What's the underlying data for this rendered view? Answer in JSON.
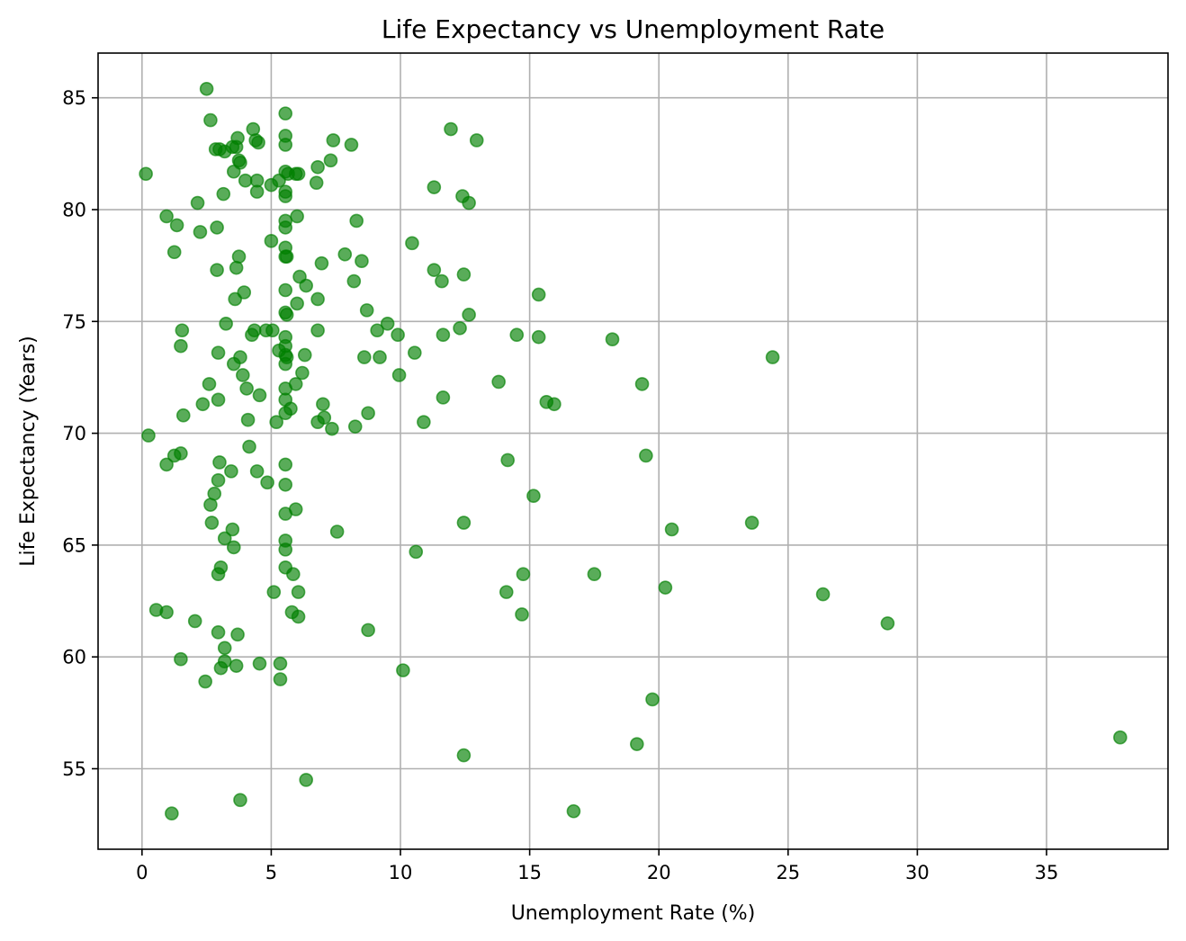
{
  "chart_data": {
    "type": "scatter",
    "title": "Life Expectancy vs Unemployment Rate",
    "xlabel": "Unemployment Rate (%)",
    "ylabel": "Life Expectancy (Years)",
    "xlim": [
      -1.7,
      39.7
    ],
    "ylim": [
      51.4,
      87.0
    ],
    "xticks": [
      0,
      5,
      10,
      15,
      20,
      25,
      30,
      35
    ],
    "yticks": [
      55,
      60,
      65,
      70,
      75,
      80,
      85
    ],
    "xtick_labels": [
      "0",
      "5",
      "10",
      "15",
      "20",
      "25",
      "30",
      "35"
    ],
    "ytick_labels": [
      "55",
      "60",
      "65",
      "70",
      "75",
      "80",
      "85"
    ],
    "grid": true,
    "legend": "none",
    "marker_color": "#008000",
    "marker_alpha": 0.65,
    "points": [
      [
        2.5,
        85.4
      ],
      [
        2.65,
        84.0
      ],
      [
        4.3,
        83.6
      ],
      [
        5.55,
        84.3
      ],
      [
        11.95,
        83.6
      ],
      [
        12.95,
        83.1
      ],
      [
        3.7,
        83.2
      ],
      [
        3.65,
        82.8
      ],
      [
        4.4,
        83.1
      ],
      [
        4.5,
        83.0
      ],
      [
        5.55,
        83.3
      ],
      [
        7.4,
        83.1
      ],
      [
        8.1,
        82.9
      ],
      [
        2.85,
        82.7
      ],
      [
        3.0,
        82.7
      ],
      [
        3.2,
        82.6
      ],
      [
        3.5,
        82.8
      ],
      [
        5.55,
        82.9
      ],
      [
        7.3,
        82.2
      ],
      [
        3.75,
        82.2
      ],
      [
        3.8,
        82.1
      ],
      [
        6.8,
        81.9
      ],
      [
        0.15,
        81.6
      ],
      [
        3.55,
        81.7
      ],
      [
        5.55,
        81.7
      ],
      [
        5.65,
        81.6
      ],
      [
        5.95,
        81.6
      ],
      [
        6.05,
        81.6
      ],
      [
        4.0,
        81.3
      ],
      [
        4.45,
        81.3
      ],
      [
        5.0,
        81.1
      ],
      [
        5.3,
        81.3
      ],
      [
        6.75,
        81.2
      ],
      [
        11.3,
        81.0
      ],
      [
        4.45,
        80.8
      ],
      [
        3.15,
        80.7
      ],
      [
        5.55,
        80.8
      ],
      [
        5.55,
        80.6
      ],
      [
        12.4,
        80.6
      ],
      [
        12.65,
        80.3
      ],
      [
        2.15,
        80.3
      ],
      [
        0.95,
        79.7
      ],
      [
        6.0,
        79.7
      ],
      [
        5.55,
        79.5
      ],
      [
        8.3,
        79.5
      ],
      [
        1.35,
        79.3
      ],
      [
        2.9,
        79.2
      ],
      [
        5.55,
        79.2
      ],
      [
        2.25,
        79.0
      ],
      [
        5.0,
        78.6
      ],
      [
        10.45,
        78.5
      ],
      [
        5.55,
        78.3
      ],
      [
        1.25,
        78.1
      ],
      [
        7.85,
        78.0
      ],
      [
        5.55,
        77.9
      ],
      [
        5.6,
        77.9
      ],
      [
        3.75,
        77.9
      ],
      [
        8.5,
        77.7
      ],
      [
        6.95,
        77.6
      ],
      [
        3.65,
        77.4
      ],
      [
        11.3,
        77.3
      ],
      [
        2.9,
        77.3
      ],
      [
        12.45,
        77.1
      ],
      [
        6.1,
        77.0
      ],
      [
        8.2,
        76.8
      ],
      [
        11.6,
        76.8
      ],
      [
        6.35,
        76.6
      ],
      [
        5.55,
        76.4
      ],
      [
        3.95,
        76.3
      ],
      [
        15.35,
        76.2
      ],
      [
        3.6,
        76.0
      ],
      [
        6.8,
        76.0
      ],
      [
        6.0,
        75.8
      ],
      [
        8.7,
        75.5
      ],
      [
        5.55,
        75.4
      ],
      [
        5.6,
        75.3
      ],
      [
        12.65,
        75.3
      ],
      [
        9.5,
        74.9
      ],
      [
        3.25,
        74.9
      ],
      [
        12.3,
        74.7
      ],
      [
        1.55,
        74.6
      ],
      [
        4.35,
        74.6
      ],
      [
        4.8,
        74.6
      ],
      [
        5.05,
        74.6
      ],
      [
        6.8,
        74.6
      ],
      [
        9.1,
        74.6
      ],
      [
        5.55,
        74.3
      ],
      [
        4.25,
        74.4
      ],
      [
        9.9,
        74.4
      ],
      [
        11.65,
        74.4
      ],
      [
        14.5,
        74.4
      ],
      [
        15.35,
        74.3
      ],
      [
        18.2,
        74.2
      ],
      [
        5.55,
        73.9
      ],
      [
        1.5,
        73.9
      ],
      [
        5.3,
        73.7
      ],
      [
        5.55,
        73.5
      ],
      [
        5.6,
        73.4
      ],
      [
        2.95,
        73.6
      ],
      [
        6.3,
        73.5
      ],
      [
        8.6,
        73.4
      ],
      [
        9.2,
        73.4
      ],
      [
        10.55,
        73.6
      ],
      [
        24.4,
        73.4
      ],
      [
        3.55,
        73.1
      ],
      [
        3.8,
        73.4
      ],
      [
        5.55,
        73.1
      ],
      [
        6.2,
        72.7
      ],
      [
        3.9,
        72.6
      ],
      [
        9.95,
        72.6
      ],
      [
        2.6,
        72.2
      ],
      [
        4.05,
        72.0
      ],
      [
        5.55,
        72.0
      ],
      [
        5.95,
        72.2
      ],
      [
        13.8,
        72.3
      ],
      [
        19.35,
        72.2
      ],
      [
        4.55,
        71.7
      ],
      [
        5.55,
        71.5
      ],
      [
        11.65,
        71.6
      ],
      [
        2.35,
        71.3
      ],
      [
        2.95,
        71.5
      ],
      [
        5.75,
        71.1
      ],
      [
        7.0,
        71.3
      ],
      [
        15.65,
        71.4
      ],
      [
        15.95,
        71.3
      ],
      [
        1.6,
        70.8
      ],
      [
        4.1,
        70.6
      ],
      [
        5.55,
        70.9
      ],
      [
        7.05,
        70.7
      ],
      [
        8.75,
        70.9
      ],
      [
        5.2,
        70.5
      ],
      [
        6.8,
        70.5
      ],
      [
        7.35,
        70.2
      ],
      [
        8.25,
        70.3
      ],
      [
        10.9,
        70.5
      ],
      [
        0.25,
        69.9
      ],
      [
        4.15,
        69.4
      ],
      [
        1.5,
        69.1
      ],
      [
        1.25,
        69.0
      ],
      [
        19.5,
        69.0
      ],
      [
        0.95,
        68.6
      ],
      [
        3.0,
        68.7
      ],
      [
        5.55,
        68.6
      ],
      [
        14.15,
        68.8
      ],
      [
        3.45,
        68.3
      ],
      [
        4.45,
        68.3
      ],
      [
        2.95,
        67.9
      ],
      [
        4.85,
        67.8
      ],
      [
        5.55,
        67.7
      ],
      [
        2.8,
        67.3
      ],
      [
        15.15,
        67.2
      ],
      [
        2.65,
        66.8
      ],
      [
        5.55,
        66.4
      ],
      [
        5.95,
        66.6
      ],
      [
        2.7,
        66.0
      ],
      [
        12.45,
        66.0
      ],
      [
        23.6,
        66.0
      ],
      [
        3.5,
        65.7
      ],
      [
        7.55,
        65.6
      ],
      [
        20.5,
        65.7
      ],
      [
        3.2,
        65.3
      ],
      [
        5.55,
        65.2
      ],
      [
        3.55,
        64.9
      ],
      [
        5.55,
        64.8
      ],
      [
        10.6,
        64.7
      ],
      [
        3.05,
        64.0
      ],
      [
        5.55,
        64.0
      ],
      [
        2.95,
        63.7
      ],
      [
        5.85,
        63.7
      ],
      [
        14.75,
        63.7
      ],
      [
        17.5,
        63.7
      ],
      [
        5.1,
        62.9
      ],
      [
        6.05,
        62.9
      ],
      [
        14.1,
        62.9
      ],
      [
        20.25,
        63.1
      ],
      [
        26.35,
        62.8
      ],
      [
        0.55,
        62.1
      ],
      [
        0.95,
        62.0
      ],
      [
        5.8,
        62.0
      ],
      [
        6.05,
        61.8
      ],
      [
        14.7,
        61.9
      ],
      [
        2.05,
        61.6
      ],
      [
        28.85,
        61.5
      ],
      [
        2.95,
        61.1
      ],
      [
        3.7,
        61.0
      ],
      [
        8.75,
        61.2
      ],
      [
        3.2,
        60.4
      ],
      [
        1.5,
        59.9
      ],
      [
        3.2,
        59.8
      ],
      [
        3.05,
        59.5
      ],
      [
        3.65,
        59.6
      ],
      [
        4.55,
        59.7
      ],
      [
        5.35,
        59.7
      ],
      [
        10.1,
        59.4
      ],
      [
        2.45,
        58.9
      ],
      [
        5.35,
        59.0
      ],
      [
        19.75,
        58.1
      ],
      [
        37.85,
        56.4
      ],
      [
        19.15,
        56.1
      ],
      [
        12.45,
        55.6
      ],
      [
        6.35,
        54.5
      ],
      [
        3.8,
        53.6
      ],
      [
        1.15,
        53.0
      ],
      [
        16.7,
        53.1
      ]
    ]
  }
}
